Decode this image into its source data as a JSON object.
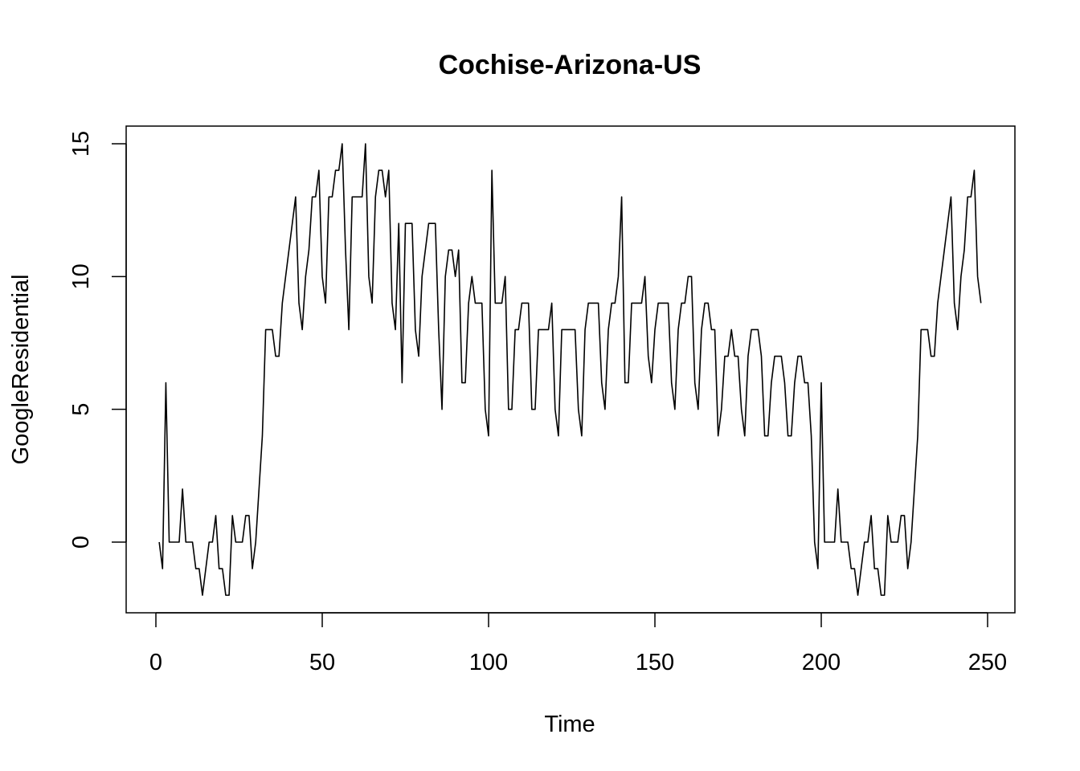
{
  "chart_data": {
    "type": "line",
    "title": "Cochise-Arizona-US",
    "xlabel": "Time",
    "ylabel": "GoogleResidential",
    "xlim": [
      0,
      250
    ],
    "ylim": [
      -2,
      15
    ],
    "x_ticks": [
      0,
      50,
      100,
      150,
      200,
      250
    ],
    "y_ticks": [
      0,
      5,
      10,
      15
    ],
    "grid": false,
    "legend": "none",
    "line_color": "#000000",
    "series": [
      {
        "x_start": 1,
        "x_step": 1,
        "values": [
          0,
          -1,
          6,
          0,
          0,
          0,
          0,
          2,
          0,
          0,
          0,
          -1,
          -1,
          -2,
          -1,
          0,
          0,
          1,
          -1,
          -1,
          -2,
          -2,
          1,
          0,
          0,
          0,
          1,
          1,
          -1,
          0,
          2,
          4,
          8,
          8,
          8,
          7,
          7,
          9,
          10,
          11,
          12,
          13,
          9,
          8,
          10,
          11,
          13,
          13,
          14,
          10,
          9,
          13,
          13,
          14,
          14,
          15,
          11,
          8,
          13,
          13,
          13,
          13,
          15,
          10,
          9,
          13,
          14,
          14,
          13,
          14,
          9,
          8,
          12,
          6,
          12,
          12,
          12,
          8,
          7,
          10,
          11,
          12,
          12,
          12,
          8,
          5,
          10,
          11,
          11,
          10,
          11,
          6,
          6,
          9,
          10,
          9,
          9,
          9,
          5,
          4,
          14,
          9,
          9,
          9,
          10,
          5,
          5,
          8,
          8,
          9,
          9,
          9,
          5,
          5,
          8,
          8,
          8,
          8,
          9,
          5,
          4,
          8,
          8,
          8,
          8,
          8,
          5,
          4,
          8,
          9,
          9,
          9,
          9,
          6,
          5,
          8,
          9,
          9,
          10,
          13,
          6,
          6,
          9,
          9,
          9,
          9,
          10,
          7,
          6,
          8,
          9,
          9,
          9,
          9,
          6,
          5,
          8,
          9,
          9,
          10,
          10,
          6,
          5,
          8,
          9,
          9,
          8,
          8,
          4,
          5,
          7,
          7,
          8,
          7,
          7,
          5,
          4,
          7,
          8,
          8,
          8,
          7,
          4,
          4,
          6,
          7,
          7,
          7,
          6,
          4,
          4,
          6,
          7,
          7,
          6,
          6,
          4,
          0,
          -1,
          6,
          0,
          0,
          0,
          0,
          2,
          0,
          0,
          0,
          -1,
          -1,
          -2,
          -1,
          0,
          0,
          1,
          -1,
          -1,
          -2,
          -2,
          1,
          0,
          0,
          0,
          1,
          1,
          -1,
          0,
          2,
          4,
          8,
          8,
          8,
          7,
          7,
          9,
          10,
          11,
          12,
          13,
          9,
          8,
          10,
          11,
          13,
          13,
          14,
          10,
          9
        ]
      }
    ]
  }
}
